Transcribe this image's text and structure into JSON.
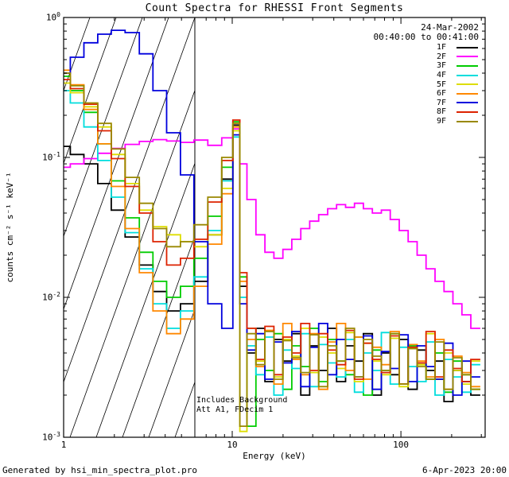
{
  "title": "Count Spectra for RHESSI Front Segments",
  "header": {
    "date": "24-Mar-2002",
    "time_range": "00:40:00 to 00:41:00"
  },
  "axes": {
    "xlabel": "Energy (keV)",
    "ylabel": "counts cm⁻² s⁻¹ keV⁻¹",
    "x_tick_labels": [
      "1",
      "10",
      "100"
    ],
    "y_tick_exponents": [
      0,
      -1,
      -2,
      -3
    ]
  },
  "annotations": {
    "line1": "Includes Background",
    "line2": "Att A1, FDecim 1"
  },
  "footer": {
    "left": "Generated by hsi_min_spectra_plot.pro",
    "right": "6-Apr-2023 20:00"
  },
  "chart_data": {
    "type": "line",
    "subtype": "log-log step spectra",
    "title": "Count Spectra for RHESSI Front Segments",
    "xlabel": "Energy (keV)",
    "ylabel": "counts cm⁻² s⁻¹ keV⁻¹",
    "xscale": "log",
    "yscale": "log",
    "xlim": [
      1,
      316
    ],
    "ylim": [
      0.001,
      1
    ],
    "grid": false,
    "legend_position": "top-right-inside",
    "x_major_ticks": [
      1,
      10,
      100
    ],
    "y_major_tick_exponents": [
      0,
      -1,
      -2,
      -3
    ],
    "hatch_region": [
      1,
      6
    ],
    "x": [
      1.0,
      1.2,
      1.45,
      1.75,
      2.1,
      2.55,
      3.1,
      3.7,
      4.5,
      5.4,
      6.5,
      7.9,
      9.5,
      10.7,
      11.5,
      13,
      14.7,
      16.6,
      18.8,
      21.2,
      24,
      27.1,
      30.6,
      34.6,
      39.1,
      44.2,
      49.9,
      56.4,
      63.7,
      72,
      81.4,
      92,
      103.9,
      117.4,
      132.7,
      150,
      169.5,
      191.5,
      216.4,
      244.6,
      276.4
    ],
    "series": [
      {
        "name": "1F",
        "color": "#000000",
        "values": [
          0.12,
          0.105,
          0.09,
          0.065,
          0.042,
          0.027,
          0.017,
          0.011,
          0.008,
          0.009,
          0.013,
          0.028,
          0.07,
          0.17,
          0.012,
          0.004,
          0.006,
          0.0025,
          0.005,
          0.0035,
          0.0055,
          0.002,
          0.0045,
          0.003,
          0.006,
          0.0025,
          0.0045,
          0.0035,
          0.0055,
          0.002,
          0.004,
          0.0028,
          0.005,
          0.0022,
          0.0042,
          0.003,
          0.0035,
          0.0018,
          0.003,
          0.0025,
          0.002
        ]
      },
      {
        "name": "2F",
        "color": "#ff00ff",
        "values": [
          0.085,
          0.09,
          0.098,
          0.107,
          0.116,
          0.124,
          0.13,
          0.134,
          0.131,
          0.128,
          0.133,
          0.122,
          0.138,
          0.16,
          0.09,
          0.05,
          0.028,
          0.021,
          0.019,
          0.022,
          0.026,
          0.031,
          0.035,
          0.039,
          0.043,
          0.046,
          0.044,
          0.047,
          0.043,
          0.04,
          0.042,
          0.036,
          0.03,
          0.025,
          0.02,
          0.016,
          0.013,
          0.011,
          0.009,
          0.0075,
          0.006
        ]
      },
      {
        "name": "3F",
        "color": "#00cc00",
        "values": [
          0.38,
          0.3,
          0.21,
          0.125,
          0.068,
          0.037,
          0.021,
          0.013,
          0.01,
          0.012,
          0.019,
          0.038,
          0.085,
          0.18,
          0.014,
          0.0012,
          0.005,
          0.003,
          0.0055,
          0.0022,
          0.0045,
          0.0032,
          0.006,
          0.0025,
          0.005,
          0.0035,
          0.0028,
          0.0052,
          0.002,
          0.0042,
          0.003,
          0.0055,
          0.0024,
          0.0045,
          0.0033,
          0.0026,
          0.004,
          0.0021,
          0.0035,
          0.0028,
          0.0022
        ]
      },
      {
        "name": "4F",
        "color": "#00dddd",
        "values": [
          0.3,
          0.245,
          0.165,
          0.095,
          0.052,
          0.029,
          0.016,
          0.009,
          0.006,
          0.008,
          0.014,
          0.03,
          0.068,
          0.14,
          0.01,
          0.0045,
          0.0028,
          0.0052,
          0.002,
          0.0042,
          0.0031,
          0.0055,
          0.0023,
          0.0046,
          0.0034,
          0.0027,
          0.005,
          0.0021,
          0.004,
          0.003,
          0.0056,
          0.0024,
          0.0044,
          0.0032,
          0.0025,
          0.0048,
          0.002,
          0.0036,
          0.0027,
          0.0021,
          0.0033
        ]
      },
      {
        "name": "5F",
        "color": "#dddd00",
        "values": [
          0.34,
          0.29,
          0.23,
          0.165,
          0.105,
          0.065,
          0.042,
          0.032,
          0.028,
          0.025,
          0.023,
          0.028,
          0.06,
          0.155,
          0.0011,
          0.006,
          0.0035,
          0.0058,
          0.0027,
          0.005,
          0.0038,
          0.006,
          0.0029,
          0.0052,
          0.004,
          0.0031,
          0.0056,
          0.0025,
          0.0047,
          0.0035,
          0.0028,
          0.0051,
          0.0023,
          0.0043,
          0.0033,
          0.0055,
          0.0026,
          0.004,
          0.003,
          0.0024,
          0.0035
        ]
      },
      {
        "name": "6F",
        "color": "#ff8800",
        "values": [
          0.42,
          0.33,
          0.22,
          0.125,
          0.062,
          0.031,
          0.015,
          0.008,
          0.0055,
          0.007,
          0.012,
          0.024,
          0.055,
          0.165,
          0.013,
          0.005,
          0.0032,
          0.0058,
          0.0024,
          0.0065,
          0.0036,
          0.0028,
          0.0055,
          0.0022,
          0.0048,
          0.0065,
          0.003,
          0.0052,
          0.0026,
          0.0044,
          0.0033,
          0.0057,
          0.0024,
          0.0046,
          0.0035,
          0.0027,
          0.005,
          0.0022,
          0.0038,
          0.0029,
          0.0023
        ]
      },
      {
        "name": "7F",
        "color": "#0000dd",
        "values": [
          0.4,
          0.52,
          0.66,
          0.76,
          0.81,
          0.78,
          0.55,
          0.3,
          0.15,
          0.075,
          0.025,
          0.009,
          0.006,
          0.145,
          0.009,
          0.0042,
          0.0055,
          0.0026,
          0.0048,
          0.0034,
          0.0057,
          0.0023,
          0.0044,
          0.0065,
          0.0028,
          0.005,
          0.0036,
          0.0027,
          0.0053,
          0.0022,
          0.0041,
          0.0031,
          0.0054,
          0.0025,
          0.0045,
          0.0032,
          0.0026,
          0.0047,
          0.002,
          0.0035,
          0.0027
        ]
      },
      {
        "name": "8F",
        "color": "#dd2200",
        "values": [
          0.36,
          0.31,
          0.24,
          0.155,
          0.098,
          0.062,
          0.04,
          0.025,
          0.017,
          0.019,
          0.026,
          0.048,
          0.095,
          0.185,
          0.015,
          0.006,
          0.0036,
          0.0062,
          0.0028,
          0.0052,
          0.004,
          0.0065,
          0.003,
          0.0055,
          0.0042,
          0.0033,
          0.0058,
          0.0026,
          0.0047,
          0.0036,
          0.0029,
          0.0053,
          0.0024,
          0.0044,
          0.0034,
          0.0057,
          0.0027,
          0.0042,
          0.0031,
          0.0025,
          0.0036
        ]
      },
      {
        "name": "9F",
        "color": "#998800",
        "values": [
          0.4,
          0.325,
          0.245,
          0.175,
          0.115,
          0.072,
          0.047,
          0.031,
          0.023,
          0.025,
          0.033,
          0.052,
          0.1,
          0.175,
          0.0012,
          0.0055,
          0.0033,
          0.0057,
          0.0026,
          0.0049,
          0.0037,
          0.0029,
          0.0054,
          0.0023,
          0.0045,
          0.0035,
          0.006,
          0.0027,
          0.005,
          0.0038,
          0.003,
          0.0055,
          0.0024,
          0.0043,
          0.0032,
          0.0026,
          0.0048,
          0.0022,
          0.0037,
          0.0028,
          0.0022
        ]
      }
    ]
  }
}
